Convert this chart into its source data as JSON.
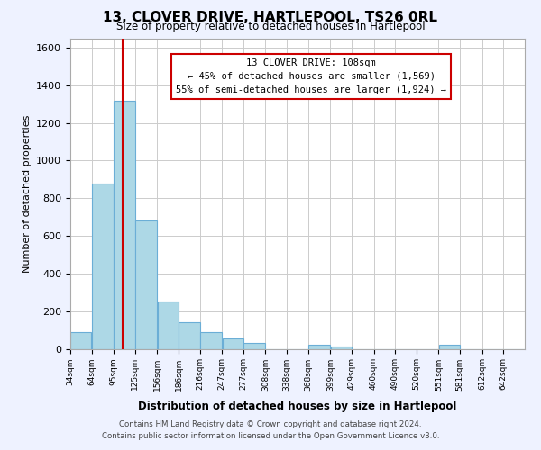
{
  "title": "13, CLOVER DRIVE, HARTLEPOOL, TS26 0RL",
  "subtitle": "Size of property relative to detached houses in Hartlepool",
  "xlabel": "Distribution of detached houses by size in Hartlepool",
  "ylabel": "Number of detached properties",
  "bin_edges": [
    34,
    64,
    95,
    125,
    156,
    186,
    216,
    247,
    277,
    308,
    338,
    368,
    399,
    429,
    460,
    490,
    520,
    551,
    581,
    612,
    642,
    672
  ],
  "bar_heights": [
    88,
    880,
    1320,
    680,
    250,
    140,
    88,
    55,
    30,
    0,
    0,
    20,
    10,
    0,
    0,
    0,
    0,
    20,
    0,
    0,
    0
  ],
  "bar_color": "#add8e6",
  "bar_edge_color": "#6baed6",
  "redline_x": 108,
  "annotation_title": "13 CLOVER DRIVE: 108sqm",
  "annotation_line1": "← 45% of detached houses are smaller (1,569)",
  "annotation_line2": "55% of semi-detached houses are larger (1,924) →",
  "annotation_box_color": "#ffffff",
  "annotation_box_edge": "#cc0000",
  "redline_color": "#cc0000",
  "ylim": [
    0,
    1650
  ],
  "tick_labels": [
    "34sqm",
    "64sqm",
    "95sqm",
    "125sqm",
    "156sqm",
    "186sqm",
    "216sqm",
    "247sqm",
    "277sqm",
    "308sqm",
    "338sqm",
    "368sqm",
    "399sqm",
    "429sqm",
    "460sqm",
    "490sqm",
    "520sqm",
    "551sqm",
    "581sqm",
    "612sqm",
    "642sqm"
  ],
  "yticks": [
    0,
    200,
    400,
    600,
    800,
    1000,
    1200,
    1400,
    1600
  ],
  "footer_line1": "Contains HM Land Registry data © Crown copyright and database right 2024.",
  "footer_line2": "Contains public sector information licensed under the Open Government Licence v3.0.",
  "background_color": "#eef2ff",
  "plot_background": "#ffffff"
}
